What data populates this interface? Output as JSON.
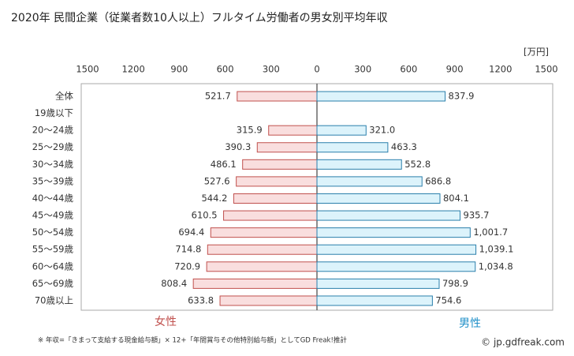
{
  "chart_data": {
    "type": "butterfly",
    "title": "2020年 民間企業（従業者数10人以上）フルタイム労働者の男女別平均年収",
    "unit": "[万円]",
    "note": "※ 年収=「きまって支給する現金給与額」× 12+「年間賞与その他特別給与額」としてGD Freak!推計",
    "source": "© jp.gdfreak.com",
    "categories": [
      "全体",
      "19歳以下",
      "20～24歳",
      "25～29歳",
      "30～34歳",
      "35～39歳",
      "40～44歳",
      "45～49歳",
      "50～54歳",
      "55～59歳",
      "60～64歳",
      "65～69歳",
      "70歳以上"
    ],
    "xlim": [
      0,
      1500
    ],
    "grid": false,
    "series": [
      {
        "name": "女性",
        "side": "left",
        "color": "#c0504d",
        "fill": "#f9dede",
        "legend_color": "#c0504d",
        "xticks": [
          1500,
          1200,
          900,
          600,
          300
        ],
        "values": [
          521.7,
          null,
          315.9,
          390.3,
          486.1,
          527.6,
          544.2,
          610.5,
          694.4,
          714.8,
          720.9,
          808.4,
          633.8
        ],
        "value_labels": [
          "521.7",
          null,
          "315.9",
          "390.3",
          "486.1",
          "527.6",
          "544.2",
          "610.5",
          "694.4",
          "714.8",
          "720.9",
          "808.4",
          "633.8"
        ]
      },
      {
        "name": "男性",
        "side": "right",
        "color": "#2a7fab",
        "fill": "#dcf3fb",
        "legend_color": "#1e8fc8",
        "xticks": [
          0,
          300,
          600,
          900,
          1200,
          1500
        ],
        "values": [
          837.9,
          null,
          321.0,
          463.3,
          552.8,
          686.8,
          804.1,
          935.7,
          1001.7,
          1039.1,
          1034.8,
          798.9,
          754.6
        ],
        "value_labels": [
          "837.9",
          null,
          "321.0",
          "463.3",
          "552.8",
          "686.8",
          "804.1",
          "935.7",
          "1,001.7",
          "1,039.1",
          "1,034.8",
          "798.9",
          "754.6"
        ]
      }
    ]
  }
}
